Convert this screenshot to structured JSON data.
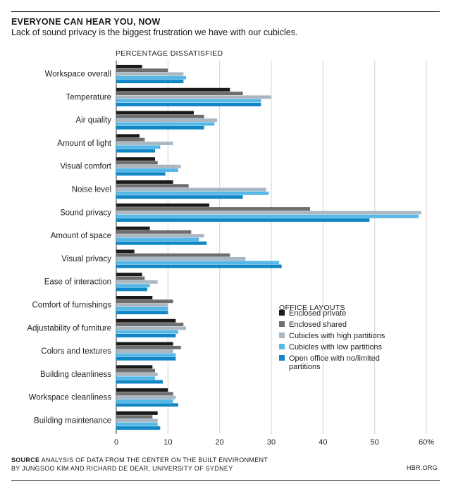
{
  "header": {
    "title": "EVERYONE CAN HEAR YOU, NOW",
    "subtitle": "Lack of sound privacy is the biggest frustration we have with our cubicles."
  },
  "footer": {
    "source_label": "SOURCE",
    "source_line1": "ANALYSIS OF DATA FROM THE CENTER ON THE BUILT ENVIRONMENT",
    "source_line2": "BY JUNGSOO KIM AND RICHARD DE DEAR, UNIVERSITY OF SYDNEY",
    "brand": "HBR.ORG"
  },
  "chart_data": {
    "type": "bar",
    "orientation": "horizontal",
    "plot_label": "PERCENTAGE DISSATISFIED",
    "xlim": [
      0,
      60
    ],
    "xticks": [
      0,
      10,
      20,
      30,
      40,
      50,
      60
    ],
    "xtick_labels": [
      "0",
      "10",
      "20",
      "30",
      "40",
      "50",
      "60%"
    ],
    "grid": true,
    "legend_title": "OFFICE LAYOUTS",
    "legend_position": "lower-right",
    "categories": [
      "Workspace overall",
      "Temperature",
      "Air quality",
      "Amount of light",
      "Visual comfort",
      "Noise level",
      "Sound privacy",
      "Amount of space",
      "Visual privacy",
      "Ease of interaction",
      "Comfort of furnishings",
      "Adjustability of furniture",
      "Colors and textures",
      "Building cleanliness",
      "Workspace cleanliness",
      "Building maintenance"
    ],
    "series": [
      {
        "name": "Enclosed private",
        "color": "#1a1a1a",
        "values": [
          5,
          22,
          15,
          4.5,
          7.5,
          11,
          18,
          6.5,
          3.5,
          5,
          7,
          11.5,
          11,
          7,
          10,
          8
        ]
      },
      {
        "name": "Enclosed shared",
        "color": "#6e6e6e",
        "values": [
          10,
          24.5,
          17,
          5.5,
          8,
          14,
          37.5,
          14.5,
          22,
          5.5,
          11,
          13,
          12.5,
          7.5,
          11,
          7
        ]
      },
      {
        "name": "Cubicles with high partitions",
        "color": "#a9b7c2",
        "values": [
          13,
          30,
          19.5,
          11,
          12.5,
          29,
          59,
          17,
          25,
          8,
          10,
          13.5,
          11,
          8,
          11.5,
          8
        ]
      },
      {
        "name": "Cubicles with low partitions",
        "color": "#56b8e6",
        "values": [
          13.5,
          28,
          19,
          8.5,
          12,
          29.5,
          58.5,
          16,
          31.5,
          6.5,
          10,
          12,
          11.5,
          7.5,
          11,
          8
        ]
      },
      {
        "name": "Open office with no/limited partitions",
        "color": "#0f86c6",
        "values": [
          13,
          28,
          17,
          7.5,
          9.5,
          24.5,
          49,
          17.5,
          32,
          6,
          10,
          11.5,
          11.5,
          9,
          12,
          8.5
        ]
      }
    ]
  }
}
